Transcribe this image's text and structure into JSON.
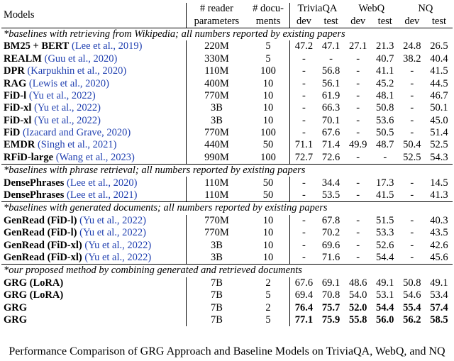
{
  "header": {
    "models": "Models",
    "reader": [
      "# reader",
      "parameters"
    ],
    "docs": [
      "# docu-",
      "ments"
    ],
    "datasets": [
      {
        "name": "TriviaQA",
        "splits": [
          "dev",
          "test"
        ]
      },
      {
        "name": "WebQ",
        "splits": [
          "dev",
          "test"
        ]
      },
      {
        "name": "NQ",
        "splits": [
          "dev",
          "test"
        ]
      }
    ]
  },
  "sections": [
    {
      "title": "*baselines with retrieving from Wikipedia; all numbers reported by existing papers",
      "rows": [
        {
          "model": "BM25 + BERT",
          "cite": "(Lee et al., 2019)",
          "params": "220M",
          "docs": "5",
          "values": [
            "47.2",
            "47.1",
            "27.1",
            "21.3",
            "24.8",
            "26.5"
          ]
        },
        {
          "model": "REALM",
          "cite": "(Guu et al., 2020)",
          "params": "330M",
          "docs": "5",
          "values": [
            "-",
            "-",
            "-",
            "40.7",
            "38.2",
            "40.4"
          ]
        },
        {
          "model": "DPR",
          "cite": "(Karpukhin et al., 2020)",
          "params": "110M",
          "docs": "100",
          "values": [
            "-",
            "56.8",
            "-",
            "41.1",
            "-",
            "41.5"
          ]
        },
        {
          "model": "RAG",
          "cite": "(Lewis et al., 2020)",
          "params": "400M",
          "docs": "10",
          "values": [
            "-",
            "56.1",
            "-",
            "45.2",
            "-",
            "44.5"
          ]
        },
        {
          "model": "FiD-l",
          "cite": "(Yu et al., 2022)",
          "params": "770M",
          "docs": "10",
          "values": [
            "-",
            "61.9",
            "-",
            "48.1",
            "-",
            "46.7"
          ]
        },
        {
          "model": "FiD-xl",
          "cite": "(Yu et al., 2022)",
          "params": "3B",
          "docs": "10",
          "values": [
            "-",
            "66.3",
            "-",
            "50.8",
            "-",
            "50.1"
          ]
        },
        {
          "model": "FiD-xl",
          "cite": "(Yu et al., 2022)",
          "params": "3B",
          "docs": "10",
          "values": [
            "-",
            "70.1",
            "-",
            "53.6",
            "-",
            "45.0"
          ]
        },
        {
          "model": "FiD",
          "cite": "(Izacard and Grave, 2020)",
          "params": "770M",
          "docs": "100",
          "values": [
            "-",
            "67.6",
            "-",
            "50.5",
            "-",
            "51.4"
          ]
        },
        {
          "model": "EMDR",
          "cite": "(Singh et al., 2021)",
          "params": "440M",
          "docs": "50",
          "values": [
            "71.1",
            "71.4",
            "49.9",
            "48.7",
            "50.4",
            "52.5"
          ]
        },
        {
          "model": "RFiD-large",
          "cite": "(Wang et al., 2023)",
          "params": "990M",
          "docs": "100",
          "values": [
            "72.7",
            "72.6",
            "-",
            "-",
            "52.5",
            "54.3"
          ]
        }
      ]
    },
    {
      "title": "*baselines with phrase retrieval; all numbers reported by existing papers",
      "rows": [
        {
          "model": "DensePhrases",
          "cite": "(Lee et al., 2020)",
          "params": "110M",
          "docs": "50",
          "values": [
            "-",
            "34.4",
            "-",
            "17.3",
            "-",
            "14.5"
          ]
        },
        {
          "model": "DensePhrases",
          "cite": "(Lee et al., 2021)",
          "params": "110M",
          "docs": "50",
          "values": [
            "-",
            "53.5",
            "-",
            "41.5",
            "-",
            "41.3"
          ]
        }
      ]
    },
    {
      "title": "*baselines with generated documents; all numbers reported by existing papers",
      "rows": [
        {
          "model": "GenRead (FiD-l)",
          "cite": "(Yu et al., 2022)",
          "params": "770M",
          "docs": "10",
          "values": [
            "-",
            "67.8",
            "-",
            "51.5",
            "-",
            "40.3"
          ]
        },
        {
          "model": "GenRead (FiD-l)",
          "cite": "(Yu et al., 2022)",
          "params": "770M",
          "docs": "10",
          "values": [
            "-",
            "70.2",
            "-",
            "53.3",
            "-",
            "43.5"
          ]
        },
        {
          "model": "GenRead (FiD-xl)",
          "cite": "(Yu et al., 2022)",
          "params": "3B",
          "docs": "10",
          "values": [
            "-",
            "69.6",
            "-",
            "52.6",
            "-",
            "42.6"
          ]
        },
        {
          "model": "GenRead (FiD-xl)",
          "cite": "(Yu et al., 2022)",
          "params": "3B",
          "docs": "10",
          "values": [
            "-",
            "71.6",
            "-",
            "54.4",
            "-",
            "45.6"
          ]
        }
      ]
    },
    {
      "title": "*our proposed method by combining generated and retrieved documents",
      "rows": [
        {
          "model": "GRG (LoRA)",
          "params": "7B",
          "docs": "2",
          "values": [
            "67.6",
            "69.1",
            "48.6",
            "49.1",
            "50.8",
            "49.1"
          ]
        },
        {
          "model": "GRG (LoRA)",
          "params": "7B",
          "docs": "5",
          "values": [
            "69.4",
            "70.8",
            "54.0",
            "53.1",
            "54.6",
            "53.4"
          ]
        },
        {
          "model": "GRG",
          "params": "7B",
          "docs": "2",
          "values": [
            "76.4",
            "75.7",
            "52.0",
            "54.4",
            "55.4",
            "57.4"
          ],
          "bold": true
        },
        {
          "model": "GRG",
          "params": "7B",
          "docs": "5",
          "values": [
            "77.1",
            "75.9",
            "55.8",
            "56.0",
            "56.2",
            "58.5"
          ],
          "bold": true
        }
      ]
    }
  ],
  "caption": "Performance Comparison of GRG Approach and Baseline Models on TriviaQA, WebQ, and NQ"
}
